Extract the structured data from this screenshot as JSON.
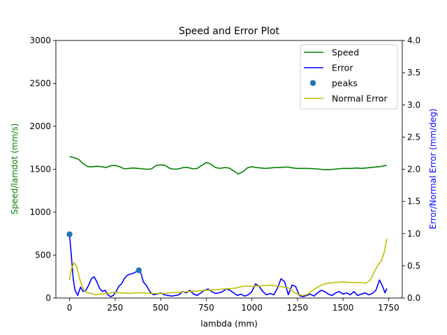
{
  "chart_data": {
    "type": "line",
    "title": "Speed and Error Plot",
    "xlabel": "lambda (mm)",
    "ylabel_left": "Speed/lamdot (mm/s)",
    "ylabel_right": "Error/Normal Error (mm/deg)",
    "xlim": [
      -75,
      1825
    ],
    "ylim_left": [
      0,
      3000
    ],
    "ylim_right": [
      0,
      4.0
    ],
    "x_ticks": [
      0,
      250,
      500,
      750,
      1000,
      1250,
      1500,
      1750
    ],
    "y_ticks_left": [
      0,
      500,
      1000,
      1500,
      2000,
      2500,
      3000
    ],
    "y_ticks_right": [
      0.0,
      0.5,
      1.0,
      1.5,
      2.0,
      2.5,
      3.0,
      3.5,
      4.0
    ],
    "grid": false,
    "legend_position": "top-right",
    "colors": {
      "speed": "#008000",
      "error": "#0000ff",
      "peaks": "#1f77b4",
      "normal_error": "#bfbf00",
      "left_axis_label": "#008000",
      "right_axis_label": "#0000ff"
    },
    "series": [
      {
        "name": "Speed",
        "axis": "left",
        "x": [
          0,
          25,
          50,
          75,
          100,
          125,
          150,
          175,
          200,
          225,
          250,
          275,
          300,
          325,
          350,
          375,
          400,
          425,
          450,
          475,
          500,
          525,
          550,
          575,
          600,
          625,
          650,
          675,
          700,
          725,
          750,
          775,
          800,
          825,
          850,
          875,
          900,
          925,
          950,
          975,
          1000,
          1025,
          1050,
          1075,
          1100,
          1125,
          1150,
          1175,
          1200,
          1225,
          1250,
          1275,
          1300,
          1325,
          1350,
          1375,
          1400,
          1425,
          1450,
          1475,
          1500,
          1525,
          1550,
          1575,
          1600,
          1625,
          1650,
          1675,
          1700,
          1725,
          1740
        ],
        "y": [
          1648,
          1635,
          1615,
          1565,
          1530,
          1528,
          1535,
          1530,
          1520,
          1540,
          1545,
          1530,
          1505,
          1510,
          1515,
          1510,
          1505,
          1500,
          1505,
          1545,
          1550,
          1545,
          1510,
          1500,
          1505,
          1520,
          1520,
          1505,
          1510,
          1545,
          1578,
          1560,
          1520,
          1510,
          1520,
          1515,
          1480,
          1445,
          1470,
          1515,
          1530,
          1520,
          1515,
          1510,
          1515,
          1520,
          1520,
          1525,
          1525,
          1515,
          1510,
          1510,
          1510,
          1508,
          1505,
          1500,
          1495,
          1495,
          1500,
          1505,
          1510,
          1510,
          1510,
          1515,
          1510,
          1515,
          1520,
          1525,
          1530,
          1540,
          1545
        ]
      },
      {
        "name": "Error",
        "axis": "right",
        "x": [
          0,
          10,
          20,
          30,
          45,
          60,
          75,
          90,
          105,
          120,
          135,
          150,
          165,
          180,
          195,
          210,
          225,
          240,
          255,
          270,
          285,
          300,
          315,
          330,
          345,
          360,
          375,
          385,
          395,
          405,
          420,
          440,
          460,
          480,
          500,
          520,
          540,
          560,
          580,
          600,
          620,
          640,
          660,
          680,
          700,
          720,
          740,
          760,
          780,
          800,
          820,
          840,
          860,
          880,
          900,
          920,
          940,
          960,
          980,
          1000,
          1020,
          1040,
          1060,
          1080,
          1100,
          1120,
          1140,
          1160,
          1180,
          1200,
          1220,
          1240,
          1260,
          1280,
          1300,
          1320,
          1340,
          1360,
          1380,
          1400,
          1420,
          1440,
          1460,
          1480,
          1500,
          1520,
          1540,
          1560,
          1580,
          1600,
          1620,
          1640,
          1660,
          1680,
          1700,
          1720,
          1730,
          1740
        ],
        "y": [
          0.99,
          0.65,
          0.3,
          0.12,
          0.04,
          0.17,
          0.1,
          0.12,
          0.2,
          0.3,
          0.33,
          0.25,
          0.15,
          0.1,
          0.12,
          0.05,
          0.02,
          0.04,
          0.1,
          0.18,
          0.22,
          0.3,
          0.35,
          0.37,
          0.38,
          0.4,
          0.42,
          0.44,
          0.35,
          0.25,
          0.2,
          0.1,
          0.05,
          0.06,
          0.08,
          0.05,
          0.04,
          0.03,
          0.04,
          0.05,
          0.1,
          0.08,
          0.12,
          0.06,
          0.04,
          0.08,
          0.12,
          0.14,
          0.1,
          0.07,
          0.08,
          0.1,
          0.14,
          0.12,
          0.08,
          0.04,
          0.06,
          0.03,
          0.05,
          0.1,
          0.22,
          0.18,
          0.1,
          0.05,
          0.07,
          0.05,
          0.15,
          0.3,
          0.25,
          0.05,
          0.2,
          0.18,
          0.04,
          0.02,
          0.04,
          0.06,
          0.03,
          0.08,
          0.12,
          0.1,
          0.06,
          0.04,
          0.08,
          0.1,
          0.06,
          0.08,
          0.05,
          0.1,
          0.04,
          0.06,
          0.08,
          0.05,
          0.07,
          0.12,
          0.28,
          0.16,
          0.08,
          0.15
        ]
      },
      {
        "name": "peaks",
        "axis": "right",
        "kind": "scatter",
        "x": [
          0,
          380
        ],
        "y": [
          0.99,
          0.43
        ]
      },
      {
        "name": "Normal Error",
        "axis": "right",
        "x": [
          0,
          10,
          25,
          40,
          55,
          70,
          85,
          100,
          120,
          140,
          160,
          180,
          200,
          225,
          250,
          275,
          300,
          325,
          350,
          375,
          400,
          450,
          500,
          550,
          600,
          650,
          700,
          750,
          800,
          850,
          900,
          950,
          975,
          1000,
          1050,
          1100,
          1150,
          1200,
          1225,
          1250,
          1275,
          1300,
          1325,
          1350,
          1375,
          1400,
          1450,
          1500,
          1550,
          1600,
          1625,
          1650,
          1670,
          1690,
          1710,
          1725,
          1740
        ],
        "y": [
          0.28,
          0.45,
          0.55,
          0.48,
          0.3,
          0.18,
          0.1,
          0.08,
          0.07,
          0.05,
          0.06,
          0.06,
          0.07,
          0.08,
          0.09,
          0.08,
          0.08,
          0.07,
          0.08,
          0.08,
          0.08,
          0.07,
          0.07,
          0.08,
          0.09,
          0.1,
          0.11,
          0.12,
          0.13,
          0.14,
          0.15,
          0.18,
          0.19,
          0.18,
          0.19,
          0.2,
          0.18,
          0.16,
          0.1,
          0.06,
          0.04,
          0.05,
          0.1,
          0.15,
          0.19,
          0.22,
          0.24,
          0.25,
          0.24,
          0.24,
          0.23,
          0.28,
          0.4,
          0.5,
          0.58,
          0.7,
          0.92
        ]
      }
    ]
  }
}
